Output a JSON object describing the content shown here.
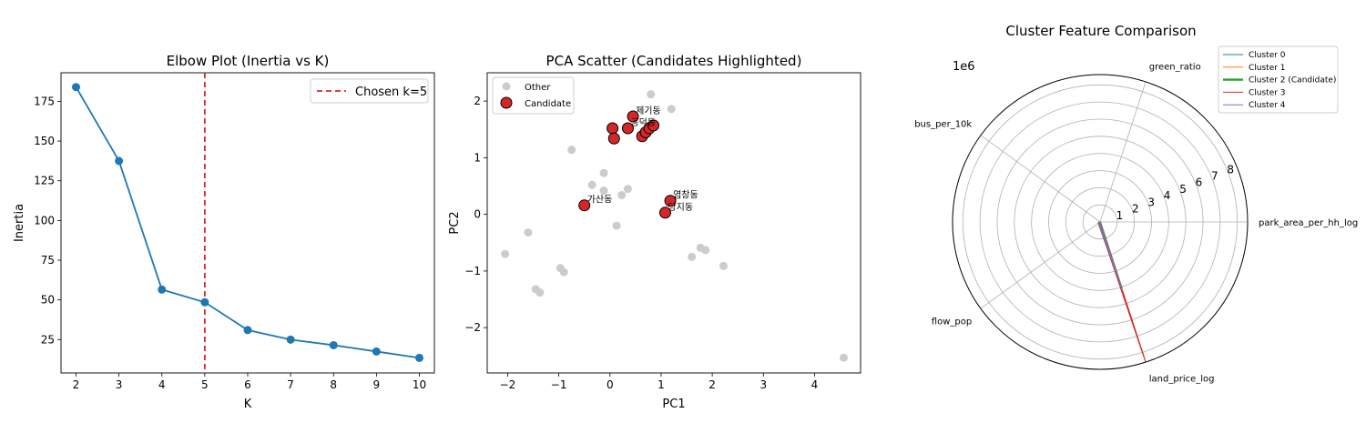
{
  "chart_data": [
    {
      "type": "line",
      "title": "Elbow Plot (Inertia vs K)",
      "xlabel": "K",
      "ylabel": "Inertia",
      "x": [
        2,
        3,
        4,
        5,
        6,
        7,
        8,
        9,
        10
      ],
      "series": [
        {
          "values": [
            184,
            137.5,
            56.5,
            48.5,
            31,
            25,
            21.5,
            17.5,
            13.5
          ],
          "color": "#1f77b4"
        }
      ],
      "xlim": [
        1.65,
        10.35
      ],
      "ylim": [
        4,
        193
      ],
      "xticks": [
        2,
        3,
        4,
        5,
        6,
        7,
        8,
        9,
        10
      ],
      "yticks": [
        25,
        50,
        75,
        100,
        125,
        150,
        175
      ],
      "vline": {
        "x": 5,
        "label": "Chosen k=5",
        "color": "#d62728"
      },
      "legend": "top-right"
    },
    {
      "type": "scatter",
      "title": "PCA Scatter (Candidates Highlighted)",
      "xlabel": "PC1",
      "ylabel": "PC2",
      "xlim": [
        -2.4,
        4.9
      ],
      "ylim": [
        -2.8,
        2.5
      ],
      "xticks": [
        -2,
        -1,
        0,
        1,
        2,
        3,
        4
      ],
      "yticks": [
        -2,
        -1,
        0,
        1,
        2
      ],
      "legend": "top-left",
      "series": [
        {
          "name": "Other",
          "color": "#cccccc",
          "points": [
            [
              -2.05,
              -0.7
            ],
            [
              -1.6,
              -0.32
            ],
            [
              -1.45,
              -1.32
            ],
            [
              -1.37,
              -1.38
            ],
            [
              -0.97,
              -0.95
            ],
            [
              -0.9,
              -1.02
            ],
            [
              -0.75,
              1.14
            ],
            [
              -0.35,
              0.52
            ],
            [
              -0.12,
              0.73
            ],
            [
              -0.12,
              0.42
            ],
            [
              0.13,
              -0.2
            ],
            [
              0.23,
              0.34
            ],
            [
              0.35,
              0.45
            ],
            [
              0.8,
              2.12
            ],
            [
              1.2,
              1.86
            ],
            [
              1.6,
              -0.75
            ],
            [
              1.77,
              -0.59
            ],
            [
              1.87,
              -0.63
            ],
            [
              2.22,
              -0.91
            ],
            [
              4.57,
              -2.53
            ]
          ]
        },
        {
          "name": "Candidate",
          "color": "#d62728",
          "points": [
            [
              -0.5,
              0.16
            ],
            [
              0.05,
              1.52
            ],
            [
              0.08,
              1.34
            ],
            [
              0.35,
              1.52
            ],
            [
              0.45,
              1.73
            ],
            [
              0.63,
              1.38
            ],
            [
              0.7,
              1.45
            ],
            [
              0.77,
              1.52
            ],
            [
              0.85,
              1.57
            ],
            [
              1.08,
              0.03
            ],
            [
              1.18,
              0.24
            ]
          ],
          "labels": [
            "가산동",
            "",
            "",
            "공덕동",
            "제기동",
            "",
            "",
            "",
            "",
            "당지동",
            "염창동"
          ]
        }
      ]
    },
    {
      "type": "radar",
      "title": "Cluster Feature Comparison",
      "scale_label": "1e6",
      "axes": [
        "park_area_per_hh_log",
        "green_ratio",
        "bus_per_10k",
        "flow_pop",
        "land_price_log"
      ],
      "rticks": [
        1,
        2,
        3,
        4,
        5,
        6,
        7,
        8
      ],
      "rlim": [
        0,
        8.6
      ],
      "legend": "top-right",
      "series": [
        {
          "name": "Cluster 0",
          "color": "#1f77b4",
          "values": [
            0.0,
            0.0,
            0.0,
            0.1,
            8.3
          ]
        },
        {
          "name": "Cluster 1",
          "color": "#ff7f0e",
          "values": [
            0.0,
            0.0,
            0.0,
            0.1,
            8.3
          ]
        },
        {
          "name": "Cluster 2 (Candidate)",
          "color": "#2ca02c",
          "values": [
            0.0,
            0.0,
            0.0,
            0.1,
            4.1
          ]
        },
        {
          "name": "Cluster 3",
          "color": "#d62728",
          "values": [
            0.0,
            0.0,
            0.0,
            0.1,
            8.6
          ]
        },
        {
          "name": "Cluster 4",
          "color": "#9467bd",
          "values": [
            0.0,
            0.0,
            0.0,
            0.1,
            4.2
          ]
        }
      ]
    }
  ]
}
